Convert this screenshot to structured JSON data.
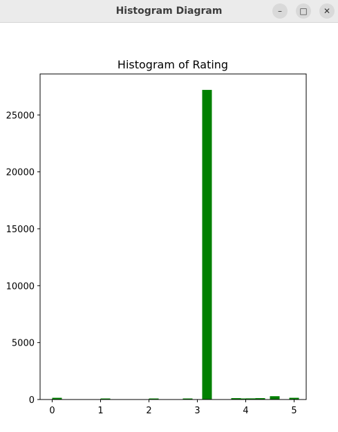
{
  "window": {
    "title": "Histogram Diagram",
    "buttons": [
      {
        "name": "minimize-button",
        "glyph": "–"
      },
      {
        "name": "maximize-button",
        "glyph": "□"
      },
      {
        "name": "close-button",
        "glyph": "✕"
      }
    ]
  },
  "colors": {
    "bar": "#008000",
    "axis": "#000000",
    "titlebar": "#ebebeb"
  },
  "chart_data": {
    "type": "bar",
    "title": "Histogram of Rating",
    "xlabel": "",
    "ylabel": "",
    "xlim": [
      -0.25,
      5.25
    ],
    "ylim": [
      0,
      28600
    ],
    "xticks": [
      0,
      1,
      2,
      3,
      4,
      5
    ],
    "yticks": [
      0,
      5000,
      10000,
      15000,
      20000,
      25000
    ],
    "bin_width": 0.2,
    "bars": [
      {
        "x": 0.0,
        "value": 150
      },
      {
        "x": 1.0,
        "value": 50
      },
      {
        "x": 2.0,
        "value": 40
      },
      {
        "x": 2.7,
        "value": 60
      },
      {
        "x": 3.1,
        "value": 27200
      },
      {
        "x": 3.7,
        "value": 120
      },
      {
        "x": 3.9,
        "value": 60
      },
      {
        "x": 4.0,
        "value": 100
      },
      {
        "x": 4.2,
        "value": 120
      },
      {
        "x": 4.5,
        "value": 290
      },
      {
        "x": 4.9,
        "value": 150
      }
    ],
    "grid": false,
    "legend": "none"
  }
}
